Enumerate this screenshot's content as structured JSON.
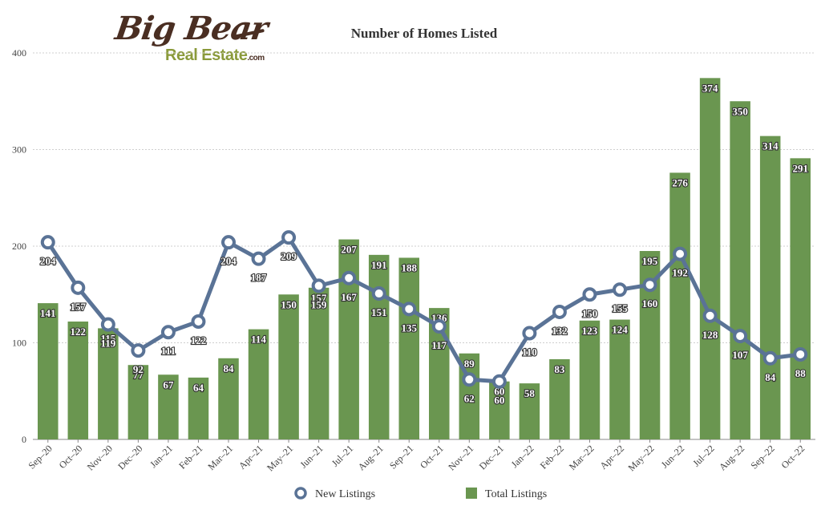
{
  "logo": {
    "big": "Big Bear",
    "sub": "Real Estate",
    "dot": ".com"
  },
  "chart_data": {
    "type": "bar",
    "title": "Number of Homes Listed",
    "xlabel": "",
    "ylabel": "",
    "ylim": [
      0,
      400
    ],
    "yticks": [
      0,
      100,
      200,
      300,
      400
    ],
    "grid": true,
    "legend_position": "bottom",
    "categories": [
      "Sep–20",
      "Oct–20",
      "Nov–20",
      "Dec–20",
      "Jan–21",
      "Feb–21",
      "Mar–21",
      "Apr–21",
      "May–21",
      "Jun–21",
      "Jul–21",
      "Aug–21",
      "Sep–21",
      "Oct–21",
      "Nov–21",
      "Dec–21",
      "Jan–22",
      "Feb–22",
      "Mar–22",
      "Apr–22",
      "May–22",
      "Jun–22",
      "Jul–22",
      "Aug–22",
      "Sep–22",
      "Oct–22"
    ],
    "series": [
      {
        "name": "Total Listings",
        "type": "bar",
        "color": "#6a9650",
        "values": [
          141,
          122,
          115,
          77,
          67,
          64,
          84,
          114,
          150,
          157,
          207,
          191,
          188,
          136,
          89,
          60,
          58,
          83,
          123,
          124,
          195,
          276,
          374,
          350,
          314,
          291
        ]
      },
      {
        "name": "New Listings",
        "type": "line",
        "color": "#5a7396",
        "values": [
          204,
          157,
          119,
          92,
          111,
          122,
          204,
          187,
          209,
          159,
          167,
          151,
          135,
          117,
          62,
          60,
          110,
          132,
          150,
          155,
          160,
          192,
          128,
          107,
          84,
          88
        ]
      }
    ]
  }
}
